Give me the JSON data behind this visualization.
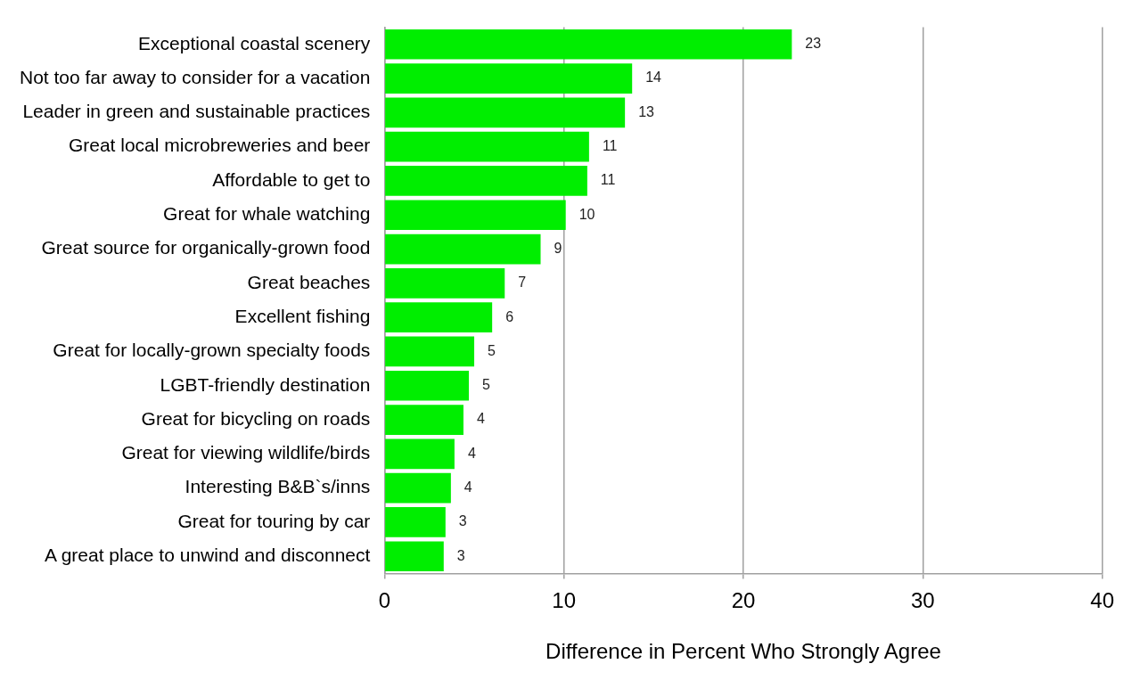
{
  "chart_data": {
    "type": "bar",
    "orientation": "horizontal",
    "xlabel": "Difference in Percent Who Strongly Agree",
    "categories": [
      "Exceptional coastal scenery",
      "Not too far away to consider for a vacation",
      "Leader in green and sustainable practices",
      "Great local microbreweries and beer",
      "Affordable to get to",
      "Great for whale watching",
      "Great source for organically-grown food",
      "Great beaches",
      "Excellent fishing",
      "Great for locally-grown specialty foods",
      "LGBT-friendly destination",
      "Great for bicycling on roads",
      "Great for viewing wildlife/birds",
      "Interesting B&B`s/inns",
      "Great for touring by car",
      "A great place to unwind and disconnect"
    ],
    "values": [
      22.7,
      13.8,
      13.4,
      11.4,
      11.3,
      10.1,
      8.7,
      6.7,
      6.0,
      5.0,
      4.7,
      4.4,
      3.9,
      3.7,
      3.4,
      3.3
    ],
    "value_labels": [
      "23",
      "14",
      "13",
      "11",
      "11",
      "10",
      "9",
      "7",
      "6",
      "5",
      "5",
      "4",
      "4",
      "4",
      "3",
      "3"
    ],
    "color": "#00ee00",
    "xlim": [
      0,
      40
    ],
    "xticks": [
      0,
      10,
      20,
      30,
      40
    ],
    "grid": "x",
    "legend": false
  }
}
